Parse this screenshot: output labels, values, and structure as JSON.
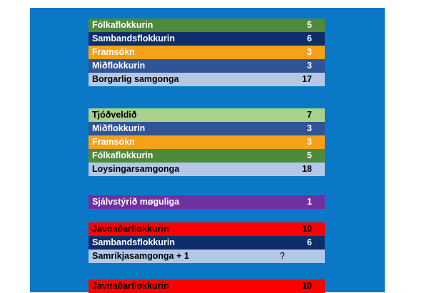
{
  "colors": {
    "background_panel": "#0a78c6",
    "folkaflokkurin": "#4f8a3a",
    "sambandsflokkurin": "#0f2d6b",
    "framsokn": "#f7a11a",
    "midflokkurin": "#2f5597",
    "coalition": "#b4c7e7",
    "tjodveldid": "#a9d18e",
    "sjalvstyrid": "#7030a0",
    "javnadarflokkurin": "#ff0000"
  },
  "groups": [
    {
      "rows": [
        {
          "label": "Fólkaflokkurin",
          "value": "5",
          "bg": "#4f8a3a",
          "fg": "#ffffff"
        },
        {
          "label": "Sambandsflokkurin",
          "value": "6",
          "bg": "#0f2d6b",
          "fg": "#ffffff"
        },
        {
          "label": "Framsókn",
          "value": "3",
          "bg": "#f7a11a",
          "fg": "#ffffff"
        },
        {
          "label": "Miðflokkurin",
          "value": "3",
          "bg": "#2f5597",
          "fg": "#ffffff"
        },
        {
          "label": "Borgarlig samgonga",
          "value": "17",
          "bg": "#b4c7e7",
          "fg": "#000000"
        }
      ]
    },
    {
      "rows": [
        {
          "label": "Tjóðveldið",
          "value": "7",
          "bg": "#a9d18e",
          "fg": "#000000"
        },
        {
          "label": "Miðflokkurin",
          "value": "3",
          "bg": "#2f5597",
          "fg": "#ffffff"
        },
        {
          "label": "Framsókn",
          "value": "3",
          "bg": "#f7a11a",
          "fg": "#ffffff"
        },
        {
          "label": "Fólkaflokkurin",
          "value": "5",
          "bg": "#4f8a3a",
          "fg": "#ffffff"
        },
        {
          "label": "Loysingarsamgonga",
          "value": "18",
          "bg": "#b4c7e7",
          "fg": "#000000"
        }
      ]
    },
    {
      "rows": [
        {
          "label": "Sjálvstýrið møguliga",
          "value": "1",
          "bg": "#7030a0",
          "fg": "#ffffff"
        }
      ]
    },
    {
      "rows": [
        {
          "label": "Javnaðarflokkurin",
          "value": "10",
          "bg": "#ff0000",
          "fg": "#000000"
        },
        {
          "label": "Sambandsflokkurin",
          "value": "6",
          "bg": "#0f2d6b",
          "fg": "#ffffff"
        },
        {
          "label": "Samríkjasamgonga + 1",
          "value": "",
          "question": "?",
          "bg": "#b4c7e7",
          "fg": "#000000"
        }
      ]
    },
    {
      "rows": [
        {
          "label": "Javnaðarflokkurin",
          "value": "10",
          "bg": "#ff0000",
          "fg": "#000000"
        }
      ]
    }
  ]
}
